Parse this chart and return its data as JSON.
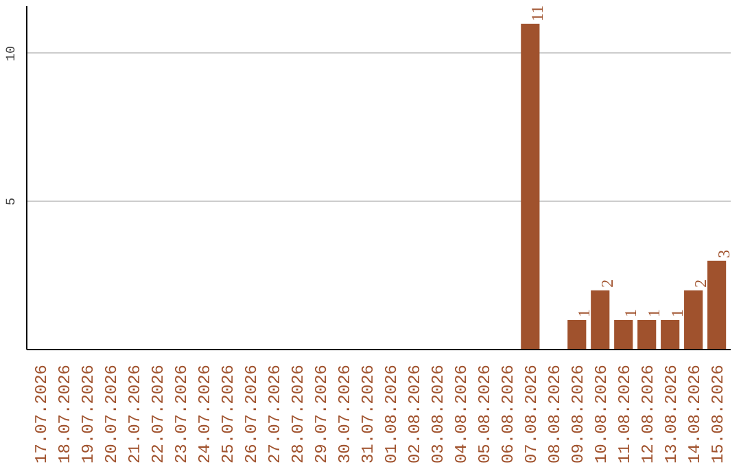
{
  "chart_data": {
    "type": "bar",
    "categories": [
      "17.07.2026",
      "18.07.2026",
      "19.07.2026",
      "20.07.2026",
      "21.07.2026",
      "22.07.2026",
      "23.07.2026",
      "24.07.2026",
      "25.07.2026",
      "26.07.2026",
      "27.07.2026",
      "28.07.2026",
      "29.07.2026",
      "30.07.2026",
      "31.07.2026",
      "01.08.2026",
      "02.08.2026",
      "03.08.2026",
      "04.08.2026",
      "05.08.2026",
      "06.08.2026",
      "07.08.2026",
      "08.08.2026",
      "09.08.2026",
      "10.08.2026",
      "11.08.2026",
      "12.08.2026",
      "13.08.2026",
      "14.08.2026",
      "15.08.2026"
    ],
    "values": [
      0,
      0,
      0,
      0,
      0,
      0,
      0,
      0,
      0,
      0,
      0,
      0,
      0,
      0,
      0,
      0,
      0,
      0,
      0,
      0,
      0,
      11,
      0,
      1,
      2,
      1,
      1,
      1,
      2,
      3
    ],
    "value_labels": [
      null,
      null,
      null,
      null,
      null,
      null,
      null,
      null,
      null,
      null,
      null,
      null,
      null,
      null,
      null,
      null,
      null,
      null,
      null,
      null,
      null,
      "11",
      null,
      "1",
      "2",
      "1",
      "1",
      "1",
      "2",
      "3"
    ],
    "color": "#a0522d",
    "ylim": [
      0,
      11.6
    ],
    "yticks": [
      5,
      10
    ],
    "grid": "y"
  }
}
